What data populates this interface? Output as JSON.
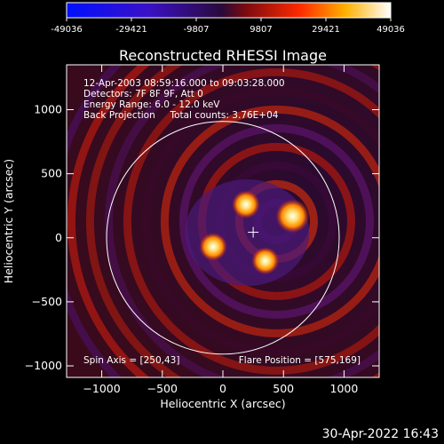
{
  "colorbar": {
    "ticks": [
      "-49036",
      "-29421",
      "-9807",
      "9807",
      "29421",
      "49036"
    ],
    "colors": [
      "#0010ff",
      "#3a10c8",
      "#5a1a90",
      "#ff2a00",
      "#ffb000",
      "#ffffff"
    ]
  },
  "chart_data": {
    "type": "heatmap",
    "title": "Reconstructed RHESSI Image",
    "xlabel": "Heliocentric X (arcsec)",
    "ylabel": "Heliocentric Y (arcsec)",
    "xlim": [
      -1290,
      1290
    ],
    "ylim": [
      -1090,
      1350
    ],
    "x_ticks": [
      -1000,
      -500,
      0,
      500,
      1000
    ],
    "y_ticks": [
      -1000,
      -500,
      0,
      500,
      1000
    ],
    "x_tick_labels": [
      "−1000",
      "−500",
      "0",
      "500",
      "1000"
    ],
    "y_tick_labels": [
      "−1000",
      "−500",
      "0",
      "500",
      "1000"
    ],
    "color_range": [
      -49036,
      49036
    ],
    "solar_disk_radius": 960,
    "spin_axis": [
      250,
      43
    ],
    "flare_position": [
      575,
      169
    ],
    "sources": [
      {
        "x": 575,
        "y": 169,
        "intensity": 49036
      },
      {
        "x": 190,
        "y": 260,
        "intensity": 32000
      },
      {
        "x": -80,
        "y": -70,
        "intensity": 32000
      },
      {
        "x": 350,
        "y": -180,
        "intensity": 30000
      }
    ],
    "info_lines": [
      "12-Apr-2003 08:59:16.000 to 09:03:28.000",
      "Detectors: 7F 8F 9F, Att 0",
      "Energy Range: 6.0 - 12.0 keV",
      "Back Projection     Total counts: 3.76E+04"
    ],
    "spin_axis_label": "Spin Axis = [250,43]",
    "flare_position_label": "Flare Position = [575,169]"
  },
  "footer": {
    "timestamp": "30-Apr-2022 16:43"
  }
}
